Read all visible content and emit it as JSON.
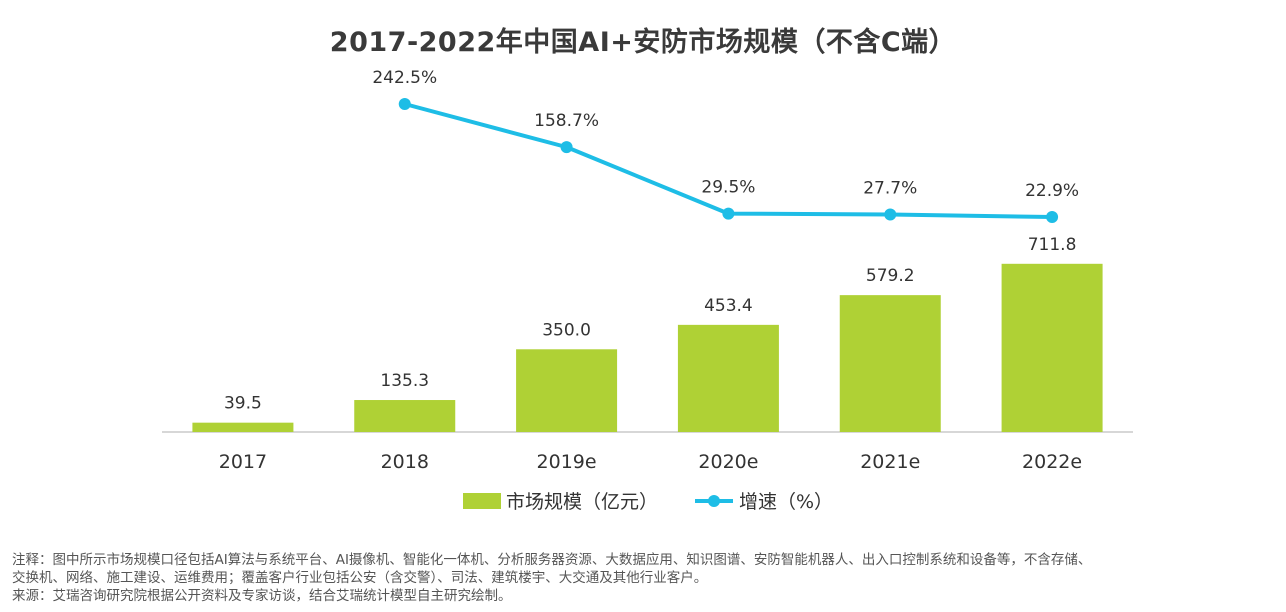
{
  "chart_data": {
    "type": "bar",
    "title": "2017-2022年中国AI+安防市场规模（不含C端）",
    "categories": [
      "2017",
      "2018",
      "2019e",
      "2020e",
      "2021e",
      "2022e"
    ],
    "series": [
      {
        "name": "市场规模（亿元）",
        "type": "bar",
        "values": [
          39.5,
          135.3,
          350.0,
          453.4,
          579.2,
          711.8
        ],
        "labels": [
          "39.5",
          "135.3",
          "350.0",
          "453.4",
          "579.2",
          "711.8"
        ],
        "color": "#afd135"
      },
      {
        "name": "增速（%）",
        "type": "line",
        "values": [
          null,
          242.5,
          158.7,
          29.5,
          27.7,
          22.9
        ],
        "labels": [
          "",
          "242.5%",
          "158.7%",
          "29.5%",
          "27.7%",
          "22.9%"
        ],
        "color": "#1ebde6"
      }
    ],
    "legend_position": "bottom-center",
    "grid": false
  },
  "notes": {
    "line1": "注释：图中所示市场规模口径包括AI算法与系统平台、AI摄像机、智能化一体机、分析服务器资源、大数据应用、知识图谱、安防智能机器人、出入口控制系统和设备等，不含存储、",
    "line2": "交换机、网络、施工建设、运维费用；覆盖客户行业包括公安（含交警）、司法、建筑楼宇、大交通及其他行业客户。",
    "line3": "来源：艾瑞咨询研究院根据公开资料及专家访谈，结合艾瑞统计模型自主研究绘制。"
  }
}
